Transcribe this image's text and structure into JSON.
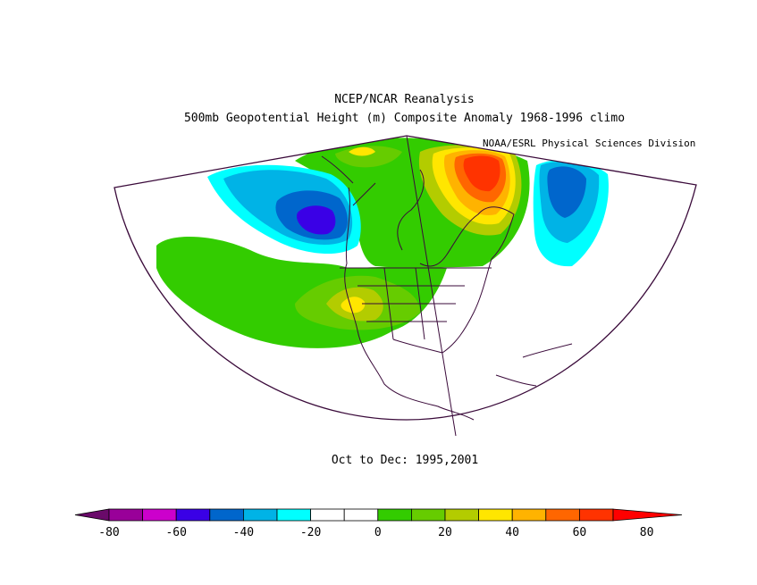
{
  "header": {
    "title": "NCEP/NCAR Reanalysis",
    "subtitle": "500mb Geopotential Height (m) Composite Anomaly 1968-1996 climo",
    "credit": "NOAA/ESRL Physical Sciences Division"
  },
  "footer": {
    "period": "Oct to Dec: 1995,2001"
  },
  "colors": {
    "outline": "#3a0a3a",
    "palette": [
      "#6a0a6a",
      "#990099",
      "#cc00cc",
      "#3a00e6",
      "#0066cc",
      "#00b3e6",
      "#00ffff",
      "#ffffff",
      "#ffffff",
      "#33cc00",
      "#66cc00",
      "#b3cc00",
      "#ffe600",
      "#ffb300",
      "#ff6600",
      "#ff3300",
      "#ff0000"
    ]
  },
  "colorbar": {
    "ticks": [
      "-80",
      "-60",
      "-40",
      "-20",
      "0",
      "20",
      "40",
      "60",
      "80"
    ]
  }
}
